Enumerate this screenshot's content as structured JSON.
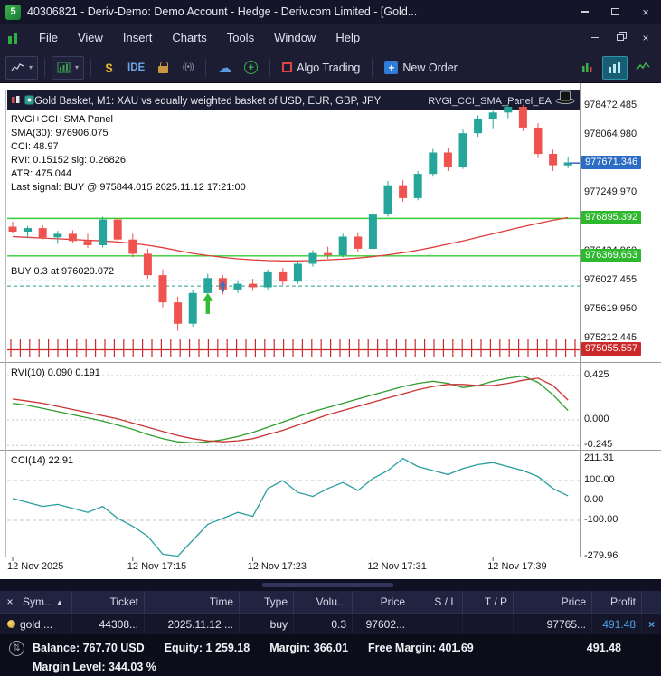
{
  "window": {
    "title": "40306821 - Deriv-Demo: Demo Account - Hedge - Deriv.com Limited - [Gold...",
    "menu": [
      "File",
      "View",
      "Insert",
      "Charts",
      "Tools",
      "Window",
      "Help"
    ]
  },
  "toolbar": {
    "ide_label": "IDE",
    "algo_trading_label": "Algo Trading",
    "new_order_label": "New Order"
  },
  "chart": {
    "header_title": "Gold Basket, M1:  XAU vs equally weighted basket of USD, EUR, GBP, JPY",
    "ea_name": "RVGI_CCI_SMA_Panel_EA",
    "overlay_lines": [
      "RVGI+CCI+SMA Panel",
      "SMA(30): 976906.075",
      "CCI: 48.97",
      "RVI: 0.15152 sig: 0.26826",
      "ATR: 475.044",
      "Last signal: BUY @ 975844.015 2025.11.12 17:21:00"
    ],
    "position_label": "BUY 0.3 at 976020.072",
    "rvi_label": "RVI(10) 0.090 0.191",
    "cci_label": "CCI(14) 22.91"
  },
  "chart_data": {
    "type": "candlestick",
    "symbol": "Gold Basket",
    "timeframe": "M1",
    "candles": [
      [
        976780,
        976850,
        976680,
        976710
      ],
      [
        976710,
        976790,
        976620,
        976760
      ],
      [
        976760,
        976800,
        976600,
        976630
      ],
      [
        976630,
        976720,
        976540,
        976680
      ],
      [
        976680,
        976730,
        976550,
        976580
      ],
      [
        976580,
        976680,
        976480,
        976520
      ],
      [
        976520,
        976920,
        976490,
        976880
      ],
      [
        976880,
        976900,
        976560,
        976600
      ],
      [
        976600,
        976680,
        976350,
        976400
      ],
      [
        976400,
        976470,
        976050,
        976100
      ],
      [
        976100,
        976180,
        975650,
        975720
      ],
      [
        975720,
        975800,
        975320,
        975420
      ],
      [
        975420,
        975900,
        975380,
        975850
      ],
      [
        975850,
        976120,
        975780,
        976060
      ],
      [
        976060,
        976100,
        975830,
        975900
      ],
      [
        975900,
        976020,
        975850,
        975980
      ],
      [
        975980,
        976050,
        975880,
        975930
      ],
      [
        975930,
        976180,
        975900,
        976140
      ],
      [
        976140,
        976200,
        975960,
        976010
      ],
      [
        976010,
        976300,
        975980,
        976260
      ],
      [
        976260,
        976450,
        976220,
        976410
      ],
      [
        976410,
        976500,
        976330,
        976380
      ],
      [
        976380,
        976680,
        976350,
        976640
      ],
      [
        976640,
        976700,
        976420,
        976470
      ],
      [
        976470,
        976990,
        976440,
        976950
      ],
      [
        976950,
        977420,
        976920,
        977360
      ],
      [
        977360,
        977430,
        977130,
        977180
      ],
      [
        977180,
        977560,
        977150,
        977520
      ],
      [
        977520,
        977870,
        977480,
        977820
      ],
      [
        977820,
        977880,
        977560,
        977620
      ],
      [
        977620,
        978140,
        977590,
        978090
      ],
      [
        978090,
        978340,
        978040,
        978290
      ],
      [
        978290,
        978420,
        978160,
        978380
      ],
      [
        978380,
        978500,
        978300,
        978460
      ],
      [
        978460,
        978490,
        978120,
        978170
      ],
      [
        978170,
        978230,
        977740,
        977800
      ],
      [
        977800,
        977860,
        977560,
        977640
      ],
      [
        977640,
        977760,
        977600,
        977680
      ]
    ],
    "sma30": [
      976640,
      976630,
      976620,
      976610,
      976600,
      976590,
      976580,
      976565,
      976545,
      976520,
      976485,
      976445,
      976405,
      976375,
      976350,
      976330,
      976315,
      976305,
      976300,
      976300,
      976305,
      976315,
      976325,
      976340,
      976360,
      976385,
      976415,
      976450,
      976490,
      976535,
      976580,
      976630,
      976680,
      976730,
      976780,
      976825,
      976870,
      976906
    ],
    "price_axis_ticks": [
      978472.485,
      978064.98,
      977657.475,
      977249.97,
      976842.465,
      976434.96,
      976027.455,
      975619.95,
      975212.445
    ],
    "price_badges": [
      {
        "value": 977671.346,
        "color": "#2b6cc4"
      },
      {
        "value": 976895.392,
        "color": "#2eb82e"
      },
      {
        "value": 976369.653,
        "color": "#2eb82e"
      },
      {
        "value": 975055.557,
        "color": "#cc2a2a"
      }
    ],
    "hlines": [
      {
        "value": 976895.392,
        "color": "#33cc33"
      },
      {
        "value": 976369.653,
        "color": "#33cc33"
      }
    ],
    "dashed_lines": [
      {
        "value": 976020.072,
        "color": "#2a9d8f"
      },
      {
        "value": 975948.0,
        "color": "#2a9d8f"
      }
    ],
    "bottom_band": {
      "value": 975055.557,
      "color": "#cc2a2a"
    },
    "arrows": [
      {
        "index": 13,
        "value": 975850,
        "color": "#33bb33",
        "size": "large"
      },
      {
        "index": 14,
        "value": 976020,
        "color": "#3f6fbf",
        "size": "small"
      }
    ],
    "time_labels": [
      {
        "index": 0,
        "text": "12 Nov 2025"
      },
      {
        "index": 8,
        "text": "12 Nov 17:15"
      },
      {
        "index": 16,
        "text": "12 Nov 17:23"
      },
      {
        "index": 24,
        "text": "12 Nov 17:31"
      },
      {
        "index": 32,
        "text": "12 Nov 17:39"
      }
    ],
    "rvi": {
      "values": [
        0.16,
        0.14,
        0.11,
        0.08,
        0.05,
        0.02,
        -0.01,
        -0.05,
        -0.09,
        -0.14,
        -0.18,
        -0.21,
        -0.22,
        -0.21,
        -0.19,
        -0.16,
        -0.12,
        -0.07,
        -0.02,
        0.03,
        0.08,
        0.12,
        0.16,
        0.2,
        0.24,
        0.28,
        0.32,
        0.35,
        0.37,
        0.35,
        0.31,
        0.33,
        0.37,
        0.4,
        0.42,
        0.36,
        0.24,
        0.09
      ],
      "signal": [
        0.2,
        0.18,
        0.16,
        0.13,
        0.1,
        0.07,
        0.04,
        0.01,
        -0.03,
        -0.07,
        -0.11,
        -0.15,
        -0.18,
        -0.2,
        -0.21,
        -0.2,
        -0.18,
        -0.14,
        -0.1,
        -0.05,
        0.0,
        0.05,
        0.09,
        0.13,
        0.17,
        0.21,
        0.25,
        0.29,
        0.32,
        0.34,
        0.34,
        0.33,
        0.33,
        0.35,
        0.38,
        0.4,
        0.33,
        0.19
      ],
      "axis_ticks": [
        0.425,
        0.0,
        -0.245
      ],
      "colors": {
        "main": "#2e9e2e",
        "signal": "#cc3333"
      }
    },
    "cci": {
      "values": [
        10,
        -10,
        -30,
        -20,
        -40,
        -60,
        -30,
        -90,
        -130,
        -180,
        -270,
        -280,
        -200,
        -120,
        -90,
        -60,
        -80,
        60,
        100,
        40,
        20,
        60,
        90,
        50,
        110,
        150,
        211,
        170,
        150,
        130,
        160,
        180,
        190,
        170,
        150,
        120,
        60,
        23
      ],
      "axis_ticks": [
        211.31,
        100.0,
        0.0,
        -100.0,
        -279.96
      ],
      "levels": [
        100,
        -100
      ],
      "color": "#2a9d9f"
    },
    "colors": {
      "up": "#26a69a",
      "down": "#ef5350",
      "sma": "#e03c3c"
    }
  },
  "toolbox": {
    "columns": [
      "Sym...",
      "Ticket",
      "Time",
      "Type",
      "Volu...",
      "Price",
      "S / L",
      "T / P",
      "Price",
      "Profit"
    ],
    "row": [
      "gold ...",
      "44308...",
      "2025.11.12 ...",
      "buy",
      "0.3",
      "97602...",
      "",
      "",
      "97765...",
      "491.48"
    ]
  },
  "status": {
    "items": [
      "Balance: 767.70 USD",
      "Equity: 1 259.18",
      "Margin: 366.01",
      "Free Margin: 401.69"
    ],
    "profit": "491.48",
    "margin_level": "Margin Level: 344.03 %"
  },
  "icons": {
    "logo_glyph": "5",
    "close_glyph": "×",
    "dropdown_glyph": "▾",
    "dollar_glyph": "$",
    "signal_glyph": "((•))",
    "cloud_glyph": "☁",
    "plus_glyph": "+",
    "sort_glyph": "▲",
    "transfer_glyph": "⇅"
  }
}
